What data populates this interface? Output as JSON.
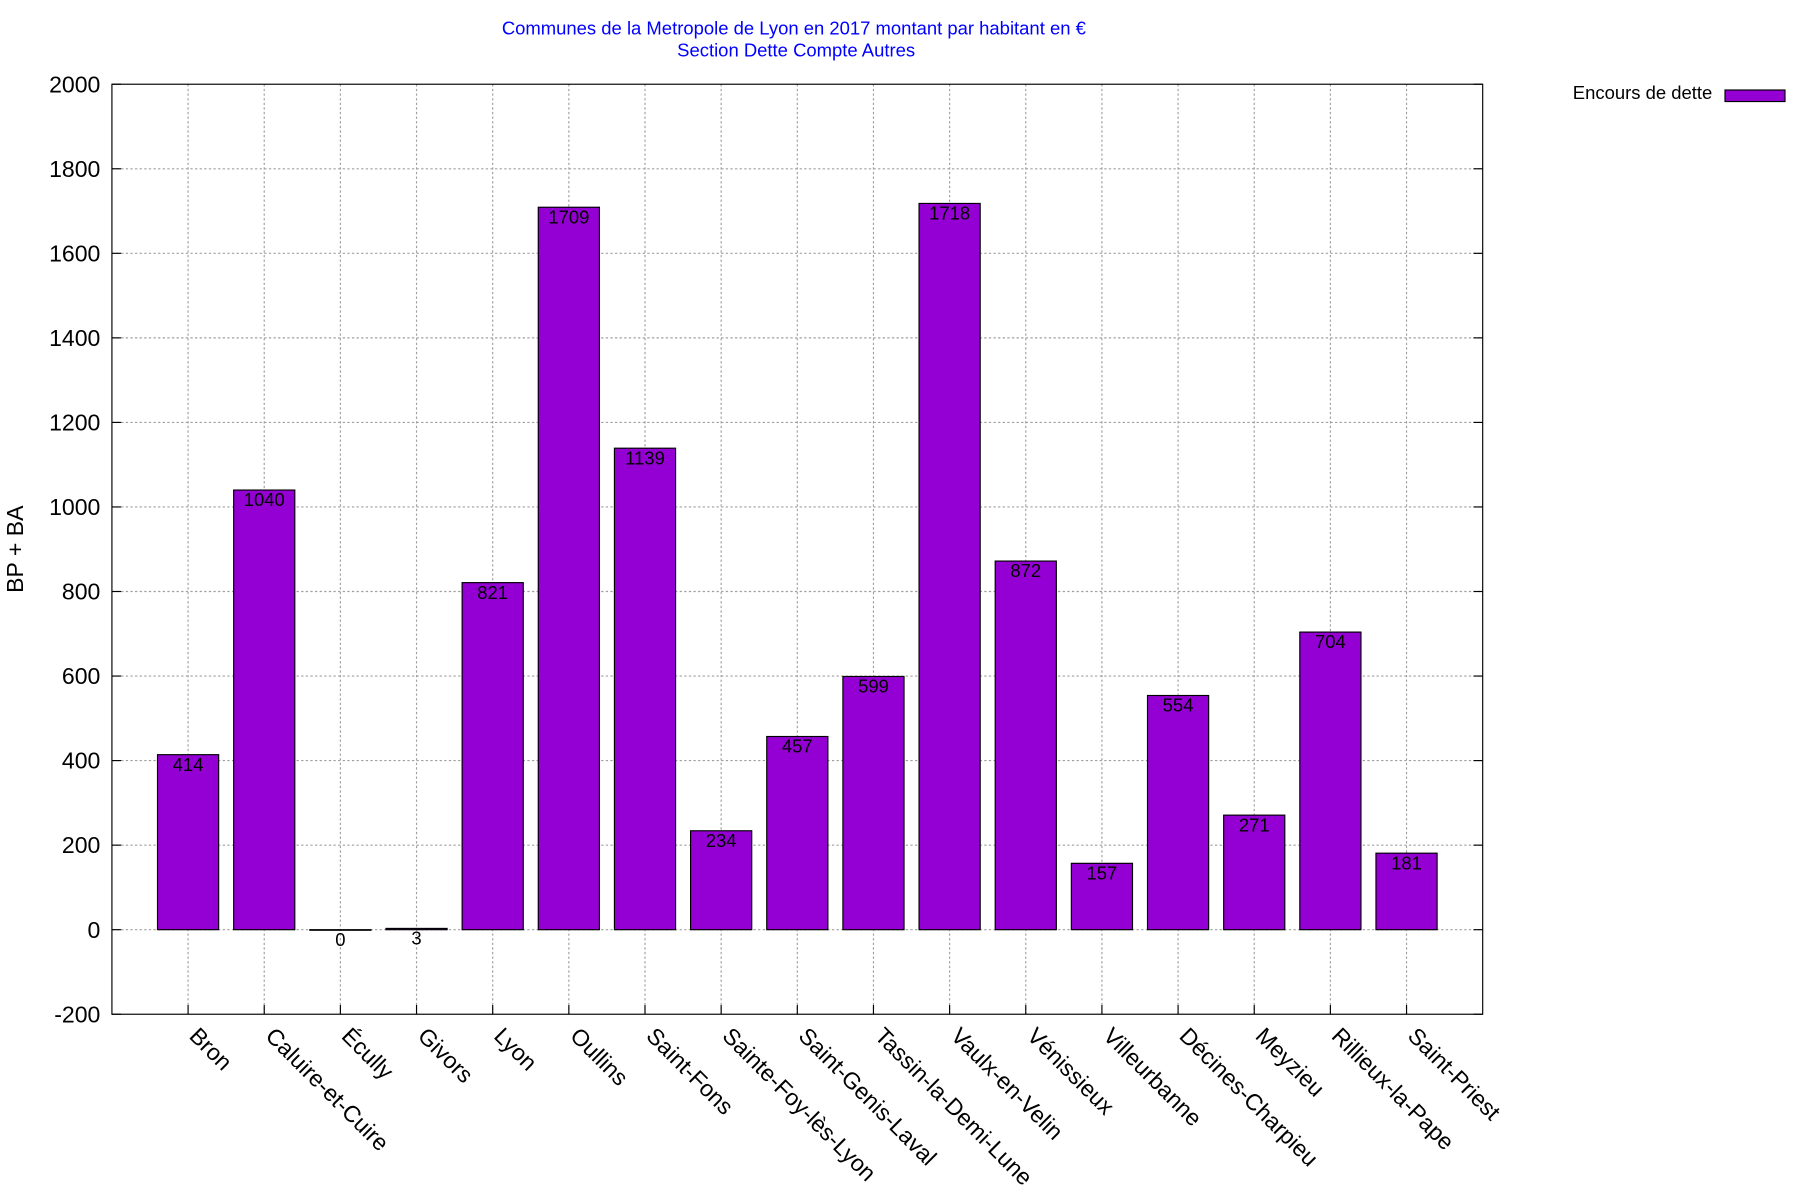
{
  "chart_data": {
    "type": "bar",
    "title": "Communes de la Metropole de Lyon en 2017 montant par habitant en €",
    "subtitle": "Section Dette Compte Autres",
    "xlabel": "",
    "ylabel": "BP + BA",
    "ylim": [
      -200,
      2000
    ],
    "yticks": [
      -200,
      0,
      200,
      400,
      600,
      800,
      1000,
      1200,
      1400,
      1600,
      1800,
      2000
    ],
    "grid": true,
    "legend_position": "top-right, outside plot",
    "categories": [
      "Bron",
      "Caluire-et-Cuire",
      "Écully",
      "Givors",
      "Lyon",
      "Oullins",
      "Saint-Fons",
      "Sainte-Foy-lès-Lyon",
      "Saint-Genis-Laval",
      "Tassin-la-Demi-Lune",
      "Vaulx-en-Velin",
      "Vénissieux",
      "Villeurbanne",
      "Décines-Charpieu",
      "Meyzieu",
      "Rillieux-la-Pape",
      "Saint-Priest"
    ],
    "series": [
      {
        "name": "Encours de dette",
        "color": "#9400d3",
        "values": [
          414,
          1040,
          0,
          3,
          821,
          1709,
          1139,
          234,
          457,
          599,
          1718,
          872,
          157,
          554,
          271,
          704,
          181
        ]
      }
    ]
  }
}
